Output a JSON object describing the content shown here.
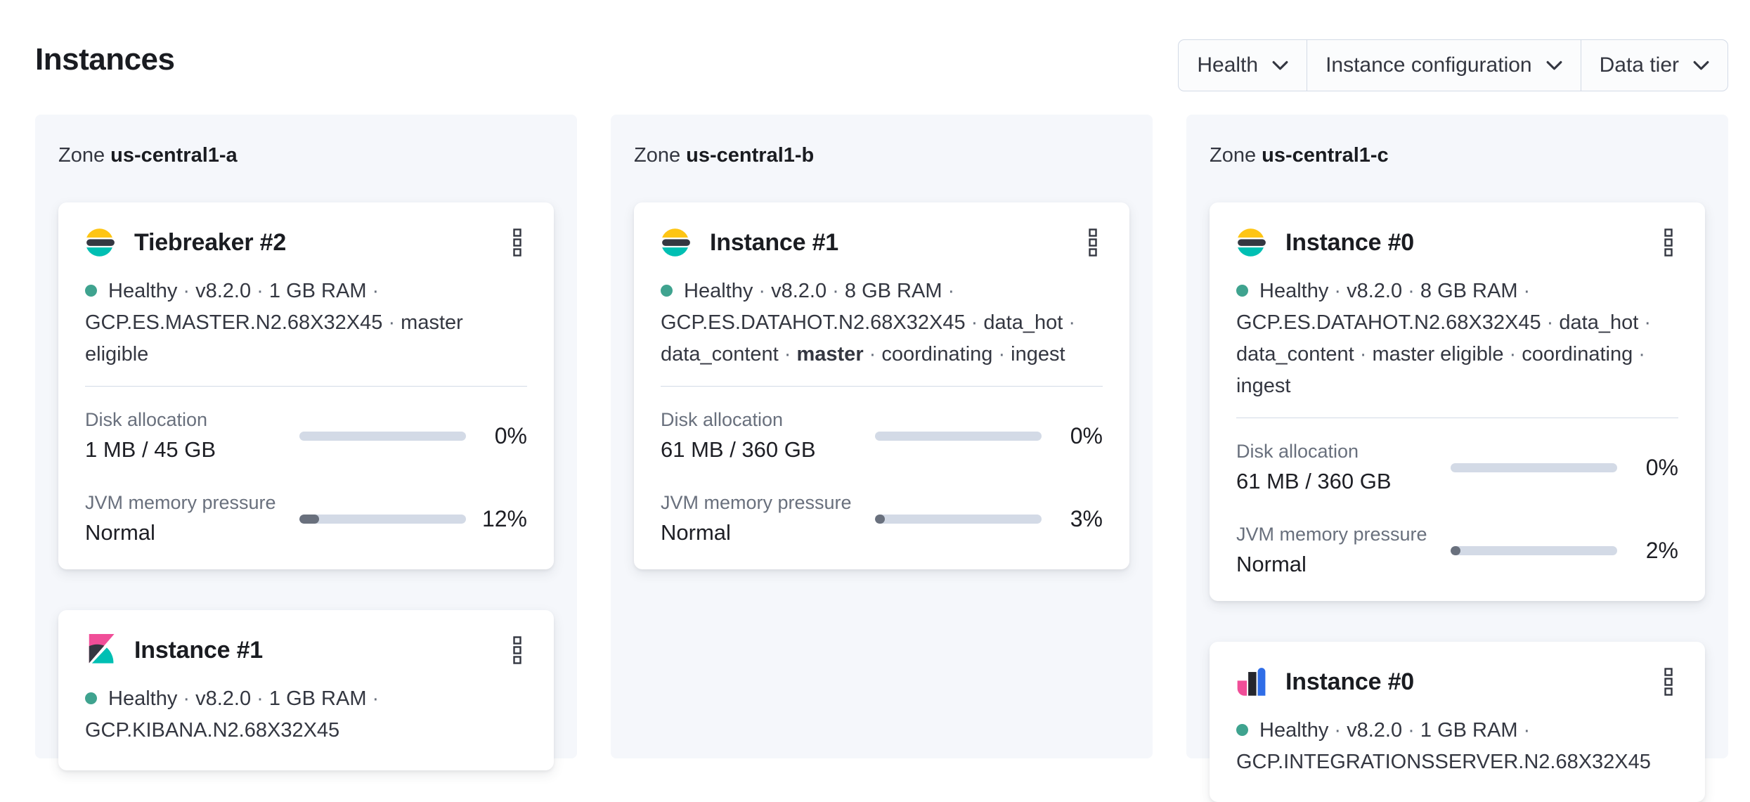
{
  "page": {
    "title": "Instances"
  },
  "labels": {
    "zone_prefix": "Zone",
    "separator": "·"
  },
  "filters": [
    {
      "label": "Health"
    },
    {
      "label": "Instance configuration"
    },
    {
      "label": "Data tier"
    }
  ],
  "colors": {
    "health_dot": "#3FA38F",
    "bar_track": "#D3DAE6",
    "bar_fill": "#69707D",
    "elastic_yellow": "#FEC514",
    "elastic_teal": "#00BFB3",
    "elastic_dark": "#343741",
    "kibana_pink": "#F04E98",
    "integrations_blue": "#2F6DE7",
    "panel_bg": "#F5F7FB"
  },
  "zones": [
    {
      "name": "us-central1-a",
      "cards": [
        {
          "icon": "elasticsearch-logo-icon",
          "title": "Tiebreaker #2",
          "health": [
            {
              "text": "Healthy"
            },
            {
              "text": "v8.2.0"
            },
            {
              "text": "1 GB RAM"
            },
            {
              "text": "GCP.ES.MASTER.N2.68X32X45"
            },
            {
              "text": "master eligible"
            }
          ],
          "metrics": [
            {
              "label": "Disk allocation",
              "value": "1 MB / 45 GB",
              "percent": 0,
              "percent_label": "0%"
            },
            {
              "label": "JVM memory pressure",
              "value": "Normal",
              "percent": 12,
              "percent_label": "12%"
            }
          ]
        },
        {
          "icon": "kibana-logo-icon",
          "title": "Instance #1",
          "health": [
            {
              "text": "Healthy"
            },
            {
              "text": "v8.2.0"
            },
            {
              "text": "1 GB RAM"
            },
            {
              "text": "GCP.KIBANA.N2.68X32X45"
            }
          ]
        }
      ]
    },
    {
      "name": "us-central1-b",
      "cards": [
        {
          "icon": "elasticsearch-logo-icon",
          "title": "Instance #1",
          "health": [
            {
              "text": "Healthy"
            },
            {
              "text": "v8.2.0"
            },
            {
              "text": "8 GB RAM"
            },
            {
              "text": "GCP.ES.DATAHOT.N2.68X32X45"
            },
            {
              "text": "data_hot"
            },
            {
              "text": "data_content"
            },
            {
              "text": "master",
              "bold": true
            },
            {
              "text": "coordinating"
            },
            {
              "text": "ingest"
            }
          ],
          "metrics": [
            {
              "label": "Disk allocation",
              "value": "61 MB / 360 GB",
              "percent": 0,
              "percent_label": "0%"
            },
            {
              "label": "JVM memory pressure",
              "value": "Normal",
              "percent": 3,
              "percent_label": "3%"
            }
          ]
        }
      ]
    },
    {
      "name": "us-central1-c",
      "cards": [
        {
          "icon": "elasticsearch-logo-icon",
          "title": "Instance #0",
          "health": [
            {
              "text": "Healthy"
            },
            {
              "text": "v8.2.0"
            },
            {
              "text": "8 GB RAM"
            },
            {
              "text": "GCP.ES.DATAHOT.N2.68X32X45"
            },
            {
              "text": "data_hot"
            },
            {
              "text": "data_content"
            },
            {
              "text": "master eligible"
            },
            {
              "text": "coordinating"
            },
            {
              "text": "ingest"
            }
          ],
          "metrics": [
            {
              "label": "Disk allocation",
              "value": "61 MB / 360 GB",
              "percent": 0,
              "percent_label": "0%"
            },
            {
              "label": "JVM memory pressure",
              "value": "Normal",
              "percent": 2,
              "percent_label": "2%"
            }
          ]
        },
        {
          "icon": "integrations-server-logo-icon",
          "title": "Instance #0",
          "health": [
            {
              "text": "Healthy"
            },
            {
              "text": "v8.2.0"
            },
            {
              "text": "1 GB RAM"
            },
            {
              "text": "GCP.INTEGRATIONSSERVER.N2.68X32X45"
            }
          ]
        }
      ]
    }
  ]
}
